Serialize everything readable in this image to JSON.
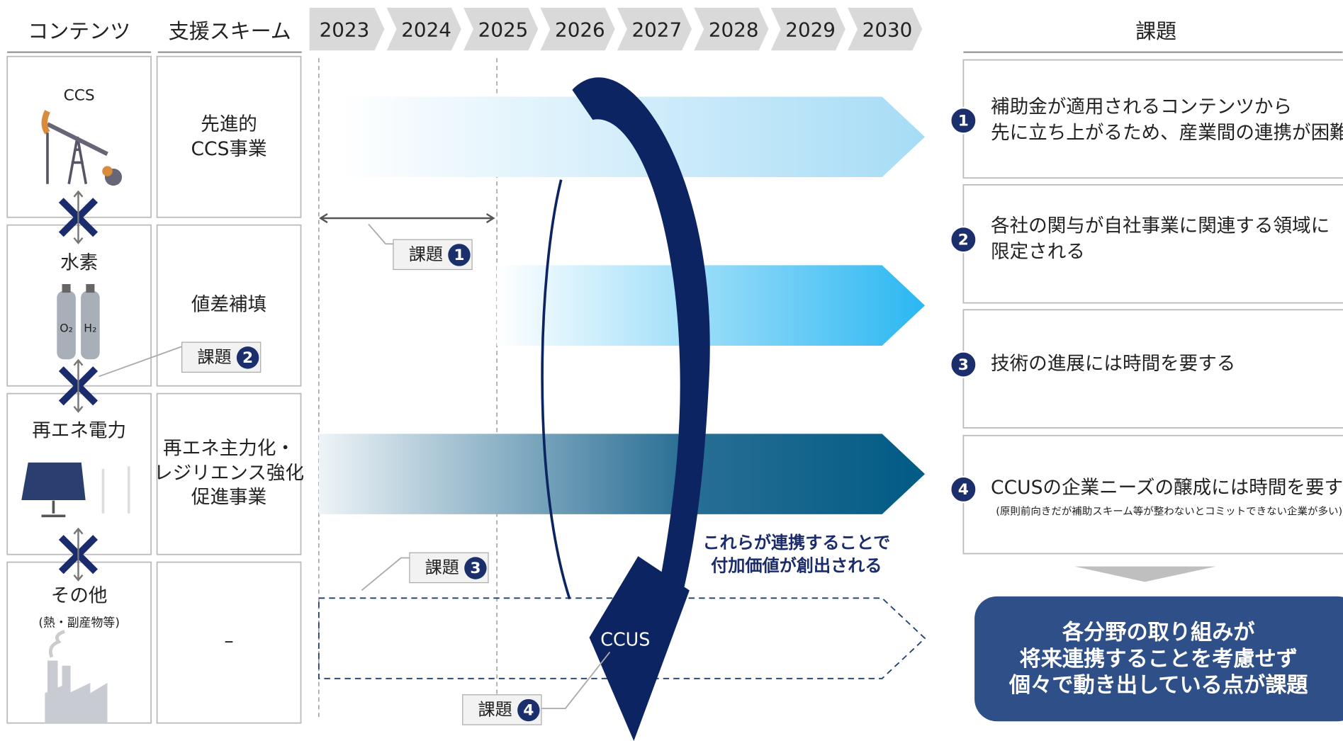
{
  "header": {
    "contents": "コンテンツ",
    "scheme": "支援スキーム",
    "years": [
      "2023",
      "2024",
      "2025",
      "2026",
      "2027",
      "2028",
      "2029",
      "2030"
    ],
    "issues": "課題"
  },
  "rows": [
    {
      "content": "CCS",
      "scheme": [
        "先進的",
        "CCS事業"
      ]
    },
    {
      "content": "水素",
      "icon_labels": [
        "O₂",
        "H₂"
      ],
      "scheme": [
        "値差補填"
      ]
    },
    {
      "content": "再エネ電力",
      "scheme": [
        "再エネ主力化・",
        "レジリエンス強化",
        "促進事業"
      ]
    },
    {
      "content": "その他",
      "sub": "(熱・副産物等)",
      "scheme": [
        "–"
      ]
    }
  ],
  "callouts": [
    {
      "label": "課題",
      "num": "1"
    },
    {
      "label": "課題",
      "num": "2"
    },
    {
      "label": "課題",
      "num": "3"
    },
    {
      "label": "課題",
      "num": "4"
    }
  ],
  "loop": {
    "text": [
      "これらが連携することで",
      "付加価値が創出される"
    ],
    "label": "CCUS"
  },
  "issues": [
    {
      "num": "1",
      "lines": [
        "補助金が適用されるコンテンツから",
        "先に立ち上がるため、産業間の連携が困難"
      ]
    },
    {
      "num": "2",
      "lines": [
        "各社の関与が自社事業に関連する領域に",
        "限定される"
      ]
    },
    {
      "num": "3",
      "lines": [
        "技術の進展には時間を要する"
      ]
    },
    {
      "num": "4",
      "lines": [
        "CCUSの企業ニーズの醸成には時間を要する"
      ],
      "note": "(原則前向きだが補助スキーム等が整わないとコミットできない企業が多い)"
    }
  ],
  "conclusion": [
    "各分野の取り組みが",
    "将来連携することを考慮せず",
    "個々で動き出している点が課題"
  ]
}
